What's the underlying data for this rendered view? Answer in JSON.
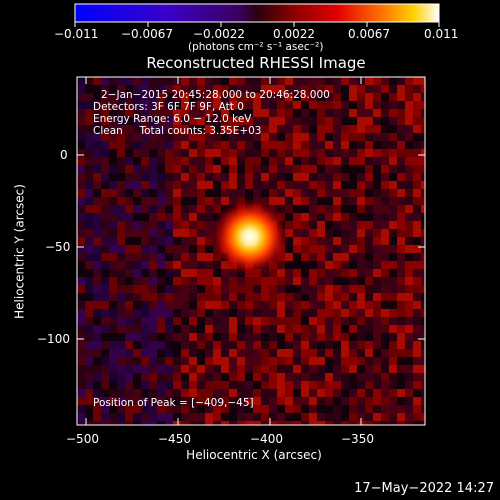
{
  "colorbar": {
    "ticks": [
      "−0.011",
      "−0.0067",
      "−0.0022",
      "0.0022",
      "0.0067",
      "0.011"
    ],
    "unit_label": "(photons cm⁻² s⁻¹ asec⁻²)",
    "range": [
      -0.011,
      0.011
    ]
  },
  "plot": {
    "title": "Reconstructed RHESSI Image",
    "xlabel": "Heliocentric X (arcsec)",
    "ylabel": "Heliocentric Y (arcsec)",
    "xticks": [
      "−500",
      "−450",
      "−400",
      "−350"
    ],
    "yticks": [
      "0",
      "−50",
      "−100"
    ],
    "xlim": [
      -505,
      -315
    ],
    "ylim": [
      -145,
      37
    ],
    "info": [
      "2−Jan−2015 20:45:28.000 to 20:46:28.000",
      "Detectors: 3F 6F 7F 9F, Att 0",
      "Energy Range: 6.0 − 12.0 keV",
      "Clean     Total counts: 3.35E+03"
    ],
    "peak_label": "Position of Peak = [−409,−45]",
    "peak": [
      -409,
      -45
    ]
  },
  "footer": {
    "timestamp": "17−May−2022 14:27"
  }
}
